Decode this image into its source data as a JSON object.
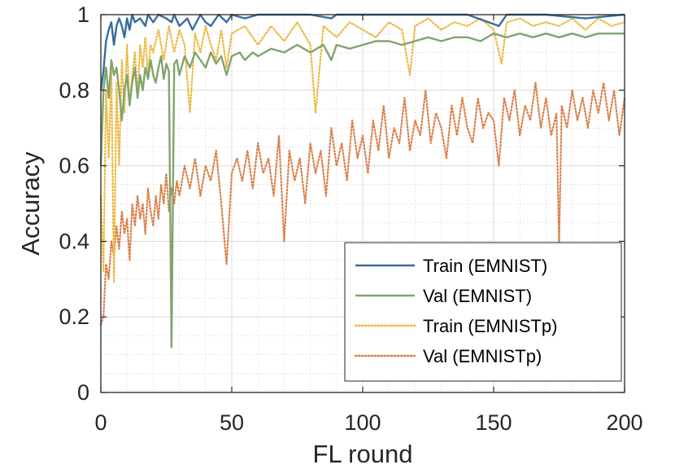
{
  "chart_data": {
    "type": "line",
    "title": "",
    "xlabel": "FL round",
    "ylabel": "Accuracy",
    "xlim": [
      0,
      200
    ],
    "ylim": [
      0,
      1
    ],
    "xticks": [
      0,
      50,
      100,
      150,
      200
    ],
    "yticks": [
      0,
      0.2,
      0.4,
      0.6,
      0.8,
      1
    ],
    "ytick_labels": [
      "0",
      "0.2",
      "0.4",
      "0.6",
      "0.8",
      "1"
    ],
    "grid": "on (major and minor)",
    "legend_position": "bottom-right",
    "series": [
      {
        "name": "Train (EMNIST)",
        "color": "#3a6c9c",
        "style": "solid",
        "points": [
          [
            0,
            0.8
          ],
          [
            1,
            0.85
          ],
          [
            2,
            0.93
          ],
          [
            3,
            0.96
          ],
          [
            4,
            0.98
          ],
          [
            5,
            0.92
          ],
          [
            6,
            0.97
          ],
          [
            7,
            0.99
          ],
          [
            8,
            0.97
          ],
          [
            9,
            0.94
          ],
          [
            10,
            0.99
          ],
          [
            11,
            0.96
          ],
          [
            12,
            1.0
          ],
          [
            13,
            0.98
          ],
          [
            15,
            0.99
          ],
          [
            17,
            0.97
          ],
          [
            18,
            1.0
          ],
          [
            20,
            0.98
          ],
          [
            22,
            1.0
          ],
          [
            25,
            0.99
          ],
          [
            27,
            0.98
          ],
          [
            28,
            1.0
          ],
          [
            30,
            0.97
          ],
          [
            33,
            0.99
          ],
          [
            35,
            0.96
          ],
          [
            38,
            1.0
          ],
          [
            40,
            0.98
          ],
          [
            42,
            0.97
          ],
          [
            45,
            1.0
          ],
          [
            48,
            0.98
          ],
          [
            50,
            1.0
          ],
          [
            55,
            0.99
          ],
          [
            60,
            1.0
          ],
          [
            70,
            1.0
          ],
          [
            80,
            1.0
          ],
          [
            88,
            0.99
          ],
          [
            90,
            1.0
          ],
          [
            100,
            1.0
          ],
          [
            120,
            1.0
          ],
          [
            140,
            1.0
          ],
          [
            152,
            0.97
          ],
          [
            155,
            1.0
          ],
          [
            170,
            1.0
          ],
          [
            185,
            0.99
          ],
          [
            200,
            1.0
          ]
        ]
      },
      {
        "name": "Val (EMNIST)",
        "color": "#82a470",
        "style": "solid",
        "points": [
          [
            0,
            0.6
          ],
          [
            1,
            0.8
          ],
          [
            2,
            0.86
          ],
          [
            3,
            0.78
          ],
          [
            4,
            0.88
          ],
          [
            5,
            0.84
          ],
          [
            6,
            0.86
          ],
          [
            7,
            0.8
          ],
          [
            8,
            0.72
          ],
          [
            9,
            0.8
          ],
          [
            10,
            0.84
          ],
          [
            11,
            0.76
          ],
          [
            12,
            0.82
          ],
          [
            13,
            0.86
          ],
          [
            14,
            0.78
          ],
          [
            15,
            0.84
          ],
          [
            16,
            0.8
          ],
          [
            17,
            0.86
          ],
          [
            18,
            0.83
          ],
          [
            19,
            0.88
          ],
          [
            20,
            0.84
          ],
          [
            21,
            0.82
          ],
          [
            22,
            0.86
          ],
          [
            23,
            0.89
          ],
          [
            24,
            0.83
          ],
          [
            25,
            0.87
          ],
          [
            26,
            0.85
          ],
          [
            27,
            0.12
          ],
          [
            28,
            0.87
          ],
          [
            29,
            0.88
          ],
          [
            30,
            0.84
          ],
          [
            32,
            0.89
          ],
          [
            34,
            0.86
          ],
          [
            36,
            0.9
          ],
          [
            38,
            0.88
          ],
          [
            40,
            0.86
          ],
          [
            42,
            0.9
          ],
          [
            44,
            0.87
          ],
          [
            46,
            0.89
          ],
          [
            48,
            0.84
          ],
          [
            50,
            0.89
          ],
          [
            53,
            0.9
          ],
          [
            55,
            0.88
          ],
          [
            58,
            0.9
          ],
          [
            60,
            0.89
          ],
          [
            65,
            0.91
          ],
          [
            70,
            0.9
          ],
          [
            75,
            0.92
          ],
          [
            80,
            0.9
          ],
          [
            85,
            0.92
          ],
          [
            88,
            0.88
          ],
          [
            90,
            0.92
          ],
          [
            95,
            0.91
          ],
          [
            100,
            0.92
          ],
          [
            105,
            0.93
          ],
          [
            110,
            0.93
          ],
          [
            115,
            0.92
          ],
          [
            120,
            0.93
          ],
          [
            125,
            0.94
          ],
          [
            130,
            0.93
          ],
          [
            135,
            0.94
          ],
          [
            140,
            0.94
          ],
          [
            145,
            0.93
          ],
          [
            150,
            0.95
          ],
          [
            155,
            0.94
          ],
          [
            160,
            0.95
          ],
          [
            165,
            0.94
          ],
          [
            170,
            0.95
          ],
          [
            175,
            0.94
          ],
          [
            180,
            0.95
          ],
          [
            185,
            0.94
          ],
          [
            190,
            0.95
          ],
          [
            195,
            0.95
          ],
          [
            200,
            0.95
          ]
        ]
      },
      {
        "name": "Train (EMNISTp)",
        "color": "#ecb943",
        "style": "dotted",
        "points": [
          [
            0,
            0.52
          ],
          [
            1,
            0.32
          ],
          [
            2,
            0.8
          ],
          [
            3,
            0.62
          ],
          [
            4,
            0.86
          ],
          [
            5,
            0.29
          ],
          [
            6,
            0.82
          ],
          [
            7,
            0.6
          ],
          [
            8,
            0.88
          ],
          [
            9,
            0.74
          ],
          [
            10,
            0.92
          ],
          [
            11,
            0.76
          ],
          [
            12,
            0.84
          ],
          [
            13,
            0.9
          ],
          [
            14,
            0.78
          ],
          [
            15,
            0.92
          ],
          [
            16,
            0.86
          ],
          [
            17,
            0.94
          ],
          [
            18,
            0.84
          ],
          [
            19,
            0.92
          ],
          [
            20,
            0.9
          ],
          [
            22,
            0.96
          ],
          [
            24,
            0.88
          ],
          [
            26,
            0.97
          ],
          [
            28,
            0.9
          ],
          [
            30,
            0.96
          ],
          [
            32,
            0.92
          ],
          [
            34,
            0.74
          ],
          [
            36,
            0.95
          ],
          [
            38,
            0.9
          ],
          [
            40,
            0.97
          ],
          [
            42,
            0.92
          ],
          [
            44,
            0.88
          ],
          [
            46,
            0.96
          ],
          [
            48,
            0.86
          ],
          [
            50,
            0.95
          ],
          [
            55,
            0.97
          ],
          [
            60,
            0.92
          ],
          [
            65,
            0.97
          ],
          [
            70,
            0.93
          ],
          [
            75,
            0.98
          ],
          [
            80,
            0.92
          ],
          [
            82,
            0.74
          ],
          [
            85,
            0.97
          ],
          [
            90,
            0.94
          ],
          [
            95,
            0.98
          ],
          [
            100,
            0.96
          ],
          [
            105,
            0.94
          ],
          [
            110,
            0.98
          ],
          [
            115,
            0.96
          ],
          [
            118,
            0.84
          ],
          [
            120,
            0.97
          ],
          [
            125,
            0.99
          ],
          [
            130,
            0.96
          ],
          [
            135,
            0.98
          ],
          [
            140,
            0.97
          ],
          [
            145,
            0.99
          ],
          [
            150,
            0.96
          ],
          [
            153,
            0.87
          ],
          [
            155,
            0.98
          ],
          [
            160,
            0.99
          ],
          [
            165,
            0.97
          ],
          [
            170,
            0.98
          ],
          [
            175,
            0.97
          ],
          [
            180,
            0.99
          ],
          [
            185,
            0.96
          ],
          [
            190,
            0.99
          ],
          [
            195,
            0.97
          ],
          [
            200,
            0.98
          ]
        ]
      },
      {
        "name": "Val (EMNISTp)",
        "color": "#d9804a",
        "style": "dotted",
        "points": [
          [
            0,
            0.18
          ],
          [
            1,
            0.2
          ],
          [
            2,
            0.34
          ],
          [
            3,
            0.3
          ],
          [
            4,
            0.4
          ],
          [
            5,
            0.36
          ],
          [
            6,
            0.44
          ],
          [
            7,
            0.38
          ],
          [
            8,
            0.48
          ],
          [
            9,
            0.42
          ],
          [
            10,
            0.46
          ],
          [
            11,
            0.35
          ],
          [
            12,
            0.5
          ],
          [
            13,
            0.44
          ],
          [
            14,
            0.52
          ],
          [
            15,
            0.46
          ],
          [
            16,
            0.5
          ],
          [
            17,
            0.42
          ],
          [
            18,
            0.54
          ],
          [
            19,
            0.48
          ],
          [
            20,
            0.44
          ],
          [
            21,
            0.52
          ],
          [
            22,
            0.46
          ],
          [
            23,
            0.55
          ],
          [
            24,
            0.5
          ],
          [
            25,
            0.58
          ],
          [
            26,
            0.48
          ],
          [
            27,
            0.54
          ],
          [
            28,
            0.5
          ],
          [
            29,
            0.56
          ],
          [
            30,
            0.52
          ],
          [
            32,
            0.6
          ],
          [
            34,
            0.54
          ],
          [
            36,
            0.62
          ],
          [
            38,
            0.52
          ],
          [
            40,
            0.6
          ],
          [
            42,
            0.56
          ],
          [
            44,
            0.64
          ],
          [
            46,
            0.5
          ],
          [
            48,
            0.34
          ],
          [
            50,
            0.58
          ],
          [
            52,
            0.62
          ],
          [
            54,
            0.56
          ],
          [
            56,
            0.64
          ],
          [
            58,
            0.54
          ],
          [
            60,
            0.66
          ],
          [
            62,
            0.58
          ],
          [
            64,
            0.62
          ],
          [
            66,
            0.52
          ],
          [
            68,
            0.68
          ],
          [
            70,
            0.4
          ],
          [
            72,
            0.64
          ],
          [
            74,
            0.56
          ],
          [
            76,
            0.62
          ],
          [
            78,
            0.5
          ],
          [
            80,
            0.66
          ],
          [
            82,
            0.58
          ],
          [
            84,
            0.64
          ],
          [
            86,
            0.52
          ],
          [
            88,
            0.7
          ],
          [
            90,
            0.6
          ],
          [
            92,
            0.66
          ],
          [
            94,
            0.56
          ],
          [
            96,
            0.72
          ],
          [
            98,
            0.62
          ],
          [
            100,
            0.68
          ],
          [
            102,
            0.58
          ],
          [
            104,
            0.72
          ],
          [
            106,
            0.64
          ],
          [
            108,
            0.76
          ],
          [
            110,
            0.62
          ],
          [
            112,
            0.7
          ],
          [
            114,
            0.66
          ],
          [
            116,
            0.78
          ],
          [
            118,
            0.64
          ],
          [
            120,
            0.72
          ],
          [
            122,
            0.68
          ],
          [
            124,
            0.8
          ],
          [
            126,
            0.66
          ],
          [
            128,
            0.74
          ],
          [
            130,
            0.7
          ],
          [
            132,
            0.62
          ],
          [
            134,
            0.76
          ],
          [
            136,
            0.68
          ],
          [
            138,
            0.78
          ],
          [
            140,
            0.7
          ],
          [
            142,
            0.66
          ],
          [
            144,
            0.78
          ],
          [
            146,
            0.7
          ],
          [
            148,
            0.74
          ],
          [
            150,
            0.72
          ],
          [
            152,
            0.6
          ],
          [
            154,
            0.78
          ],
          [
            156,
            0.72
          ],
          [
            158,
            0.8
          ],
          [
            160,
            0.68
          ],
          [
            162,
            0.76
          ],
          [
            164,
            0.72
          ],
          [
            166,
            0.82
          ],
          [
            168,
            0.7
          ],
          [
            170,
            0.78
          ],
          [
            172,
            0.68
          ],
          [
            174,
            0.74
          ],
          [
            175,
            0.38
          ],
          [
            176,
            0.76
          ],
          [
            178,
            0.7
          ],
          [
            180,
            0.8
          ],
          [
            182,
            0.72
          ],
          [
            184,
            0.78
          ],
          [
            186,
            0.7
          ],
          [
            188,
            0.8
          ],
          [
            190,
            0.74
          ],
          [
            192,
            0.82
          ],
          [
            194,
            0.72
          ],
          [
            196,
            0.8
          ],
          [
            198,
            0.68
          ],
          [
            200,
            0.78
          ]
        ]
      }
    ]
  }
}
